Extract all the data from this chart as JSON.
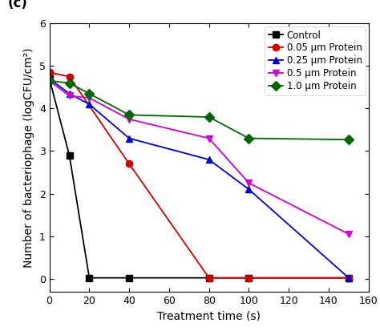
{
  "title_label": "(c)",
  "xlabel": "Treatment time (s)",
  "ylabel": "Number of bacteriophage (logCFU/cm²)",
  "xlim": [
    0,
    160
  ],
  "ylim": [
    -0.3,
    6
  ],
  "yticks": [
    0,
    1,
    2,
    3,
    4,
    5,
    6
  ],
  "xticks": [
    0,
    20,
    40,
    60,
    80,
    100,
    120,
    140,
    160
  ],
  "series": [
    {
      "label": "Control",
      "x": [
        0,
        10,
        20,
        40,
        80,
        100,
        150
      ],
      "y": [
        4.7,
        2.9,
        0.02,
        0.02,
        0.02,
        0.02,
        0.02
      ],
      "color": "#000000",
      "marker": "s",
      "linestyle": "-"
    },
    {
      "label": "0.05 μm Protein",
      "x": [
        0,
        10,
        40,
        80,
        100,
        150
      ],
      "y": [
        4.85,
        4.75,
        2.7,
        0.02,
        0.02,
        0.02
      ],
      "color": "#cc0000",
      "marker": "o",
      "linestyle": "-"
    },
    {
      "label": "0.25 μm Protein",
      "x": [
        0,
        10,
        20,
        40,
        80,
        100,
        150
      ],
      "y": [
        4.7,
        4.35,
        4.1,
        3.3,
        2.8,
        2.1,
        0.02
      ],
      "color": "#0000cc",
      "marker": "^",
      "linestyle": "-"
    },
    {
      "label": "0.5 μm Protein",
      "x": [
        0,
        10,
        20,
        40,
        80,
        100,
        150
      ],
      "y": [
        4.65,
        4.3,
        4.25,
        3.75,
        3.3,
        2.25,
        1.05
      ],
      "color": "#cc00cc",
      "marker": "v",
      "linestyle": "-"
    },
    {
      "label": "1.0 μm Protein",
      "x": [
        0,
        10,
        20,
        40,
        80,
        100,
        150
      ],
      "y": [
        4.65,
        4.6,
        4.35,
        3.85,
        3.8,
        3.3,
        3.27
      ],
      "color": "#006600",
      "marker": "D",
      "linestyle": "-"
    }
  ],
  "background_color": "#ffffff",
  "title_fontsize": 12,
  "axis_label_fontsize": 10,
  "tick_fontsize": 9,
  "legend_fontsize": 8.5,
  "markersize": 6,
  "linewidth": 1.3
}
